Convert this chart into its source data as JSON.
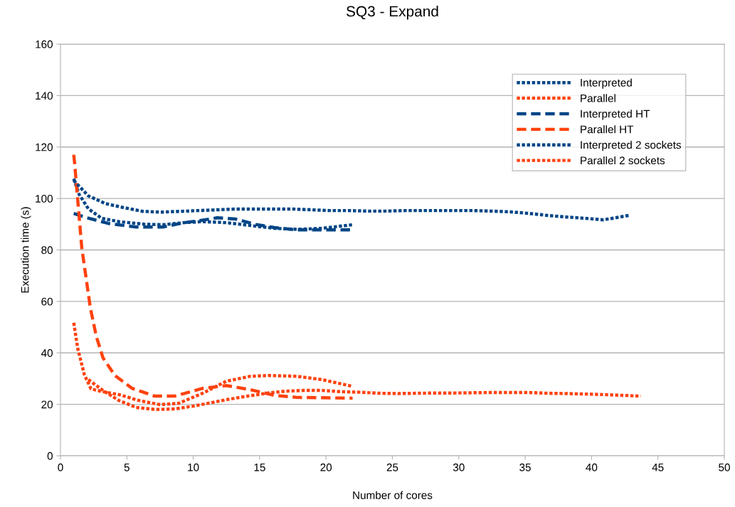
{
  "chart_data": {
    "type": "line",
    "title": "SQ3 - Expand",
    "xlabel": "Number of cores",
    "ylabel": "Execution time (s)",
    "xlim": [
      0,
      50
    ],
    "xticks": [
      0,
      5,
      10,
      15,
      20,
      25,
      30,
      35,
      40,
      45,
      50
    ],
    "ylim": [
      0,
      160
    ],
    "yticks": [
      0,
      20,
      40,
      60,
      80,
      100,
      120,
      140,
      160
    ],
    "grid": "y",
    "legend": "top right",
    "marker": "none",
    "series": [
      {
        "name": "Interpreted",
        "color": "#004586",
        "line_style": "dotted",
        "x": [
          1,
          1.4,
          2.1,
          3.1,
          4.4,
          6.3,
          7.7,
          9.3,
          10.7,
          12.5,
          14.3,
          16.1,
          17.8,
          19.7,
          22
        ],
        "values": [
          107.7,
          101.6,
          96,
          92.3,
          91,
          90,
          89.8,
          90.6,
          91,
          90.6,
          89.5,
          88.4,
          88,
          88.4,
          89.8
        ]
      },
      {
        "name": "Parallel",
        "color": "#ff420e",
        "line_style": "dotted",
        "x": [
          1,
          1.3,
          1.8,
          2.3,
          3.2,
          4.4,
          5.9,
          7.5,
          8.9,
          10.7,
          12.5,
          14.3,
          15.7,
          17.8,
          19.7,
          22
        ],
        "values": [
          51.7,
          41.7,
          31.5,
          26,
          24.9,
          23.8,
          21.5,
          19.9,
          20.4,
          24.3,
          29,
          30.9,
          31.2,
          30.9,
          29.6,
          27
        ]
      },
      {
        "name": "Interpreted HT",
        "color": "#004586",
        "line_style": "dashed",
        "x": [
          1,
          1.8,
          3.6,
          5.7,
          7.7,
          9.3,
          10.5,
          11.8,
          13.2,
          14.6,
          16.1,
          17.8,
          19.7,
          22
        ],
        "values": [
          94.2,
          92.8,
          90.3,
          88.9,
          88.9,
          90.6,
          91.4,
          92.5,
          92,
          90,
          88.7,
          87.8,
          87.8,
          87.8
        ]
      },
      {
        "name": "Parallel HT",
        "color": "#ff420e",
        "line_style": "dashed",
        "x": [
          1,
          1.07,
          1.6,
          2.25,
          2.7,
          3.2,
          4.1,
          5.4,
          7.1,
          8.6,
          10.7,
          12.5,
          14.3,
          16.1,
          17.8,
          22
        ],
        "values": [
          117,
          113.5,
          81,
          57.5,
          46.4,
          38.1,
          31.2,
          26.2,
          23.2,
          23.2,
          26.2,
          27.3,
          25.7,
          23.5,
          22.7,
          22.4
        ]
      },
      {
        "name": "Interpreted 2 sockets",
        "color": "#004586",
        "line_style": "dotted",
        "x": [
          1,
          2.1,
          3.4,
          4.8,
          6.2,
          7.6,
          9,
          10.4,
          11.8,
          13.2,
          14.6,
          16,
          17.5,
          18.9,
          20.3,
          21.7,
          23.2,
          24.5,
          26,
          28.2,
          29.6,
          31,
          32.5,
          33.9,
          35.3,
          36.7,
          38.1,
          39.5,
          40.9,
          42.8
        ],
        "values": [
          107,
          101,
          98,
          96.4,
          95,
          94.7,
          95,
          95.3,
          95.6,
          95.9,
          95.9,
          95.9,
          95.9,
          95.6,
          95.3,
          95.3,
          95.1,
          95.1,
          95.3,
          95.3,
          95.3,
          95.3,
          95.1,
          94.8,
          94.2,
          93.4,
          92.8,
          92.3,
          91.7,
          93.4
        ]
      },
      {
        "name": "Parallel 2 sockets",
        "color": "#ff420e",
        "line_style": "dotted",
        "x": [
          2.1,
          3.2,
          4.4,
          5.7,
          7.1,
          8.6,
          10,
          11.4,
          12.8,
          14.1,
          15.5,
          16.9,
          18.3,
          19.7,
          21.2,
          22.6,
          24,
          25.4,
          26.8,
          28.2,
          29.6,
          31,
          32.5,
          33.9,
          35.3,
          36.7,
          38.1,
          39.5,
          40.9,
          42.3,
          43.7
        ],
        "values": [
          29.6,
          25.4,
          21.5,
          18.8,
          18,
          18.2,
          19.3,
          20.7,
          22.1,
          23.2,
          24.3,
          25.1,
          25.4,
          25.4,
          24.9,
          24.7,
          24.3,
          24.2,
          24.3,
          24.4,
          24.4,
          24.5,
          24.6,
          24.6,
          24.6,
          24.3,
          24.2,
          24,
          23.8,
          23.5,
          23.2
        ]
      }
    ]
  }
}
